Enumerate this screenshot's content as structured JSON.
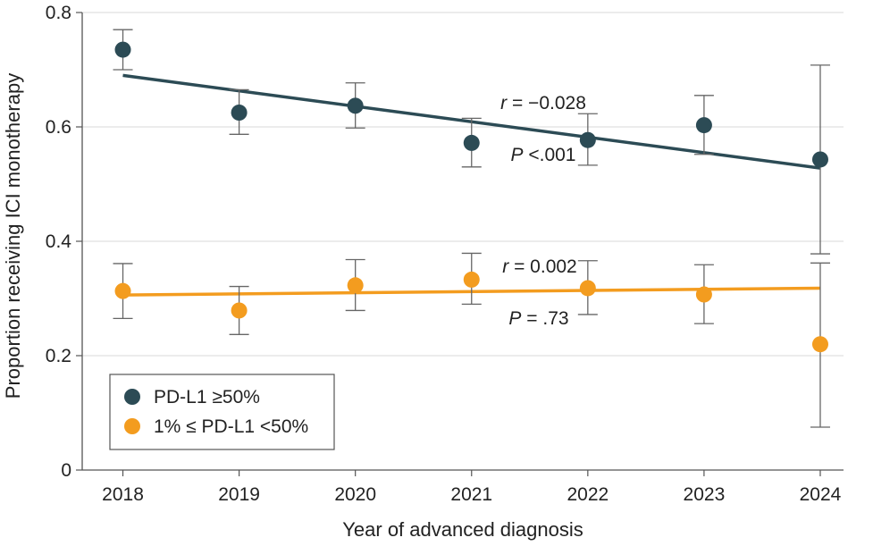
{
  "chart_data": {
    "type": "scatter",
    "title": "",
    "xlabel": "Year of advanced diagnosis",
    "ylabel": "Proportion receiving ICI monotherapy",
    "x": [
      2018,
      2019,
      2020,
      2021,
      2022,
      2023,
      2024
    ],
    "x_tick_labels": [
      "2018",
      "2019",
      "2020",
      "2021",
      "2022",
      "2023",
      "2024"
    ],
    "xlim": [
      2017.65,
      2024.2
    ],
    "ylim": [
      0,
      0.8
    ],
    "y_ticks": [
      0,
      0.2,
      0.4,
      0.6,
      0.8
    ],
    "y_tick_labels": [
      "0",
      "0.2",
      "0.4",
      "0.6",
      "0.8"
    ],
    "grid": true,
    "legend_position": "bottom-left",
    "series": [
      {
        "name": "PD-L1 ≥50%",
        "color": "#2c4b55",
        "values": [
          0.735,
          0.625,
          0.637,
          0.572,
          0.577,
          0.603,
          0.543
        ],
        "ci_lower": [
          0.7,
          0.587,
          0.598,
          0.53,
          0.533,
          0.552,
          0.378
        ],
        "ci_upper": [
          0.77,
          0.665,
          0.677,
          0.615,
          0.623,
          0.655,
          0.708
        ],
        "trend": {
          "x": [
            2018,
            2024
          ],
          "y": [
            0.69,
            0.528
          ]
        },
        "r_text": "r = −0.028",
        "p_text": "P <.001"
      },
      {
        "name": "1% ≤ PD-L1 <50%",
        "color": "#f39c1f",
        "values": [
          0.313,
          0.279,
          0.323,
          0.333,
          0.318,
          0.307,
          0.22
        ],
        "ci_lower": [
          0.265,
          0.237,
          0.279,
          0.29,
          0.272,
          0.256,
          0.075
        ],
        "ci_upper": [
          0.361,
          0.321,
          0.368,
          0.379,
          0.366,
          0.359,
          0.362
        ],
        "trend": {
          "x": [
            2018,
            2024
          ],
          "y": [
            0.306,
            0.318
          ]
        },
        "r_text": "r = 0.002",
        "p_text": "P = .73"
      }
    ]
  }
}
